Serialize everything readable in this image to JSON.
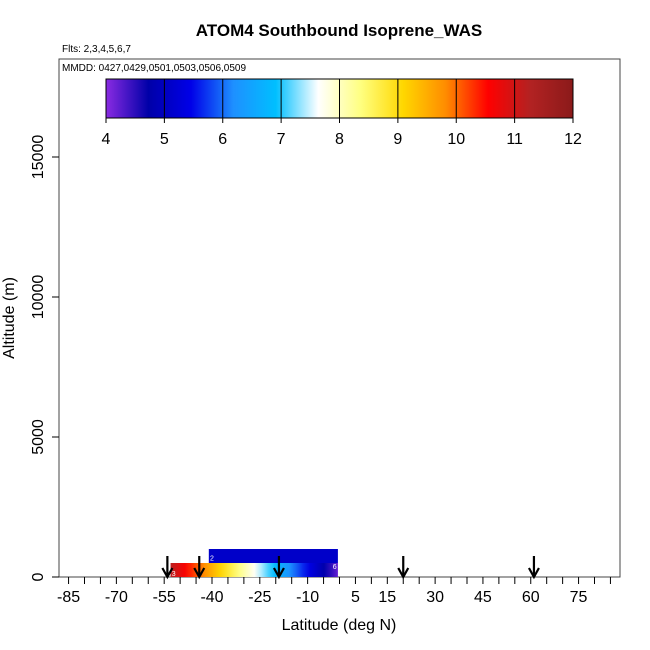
{
  "chart_data": {
    "type": "heatmap",
    "title": "ATOM4 Southbound Isoprene_WAS",
    "flights_note": "Flts: 2,3,4,5,6,7",
    "dates_note": "MMDD: 0427,0429,0501,0503,0506,0509",
    "xlabel": "Latitude (deg N)",
    "ylabel": "Altitude (m)",
    "xlim": [
      -88,
      88
    ],
    "ylim": [
      0,
      18500
    ],
    "x_ticks": [
      -85,
      -70,
      -55,
      -40,
      -25,
      -10,
      5,
      15,
      30,
      45,
      60,
      75
    ],
    "x_tick_labels": [
      "-85",
      "-70",
      "-55",
      "-40",
      "-25",
      "-10",
      "5",
      "15",
      "30",
      "45",
      "60",
      "75"
    ],
    "x_minor_ticks": [
      -80,
      -75,
      -65,
      -60,
      -50,
      -45,
      -35,
      -30,
      -20,
      -15,
      -5,
      0,
      10,
      20,
      25,
      35,
      40,
      50,
      55,
      65,
      70,
      80,
      85
    ],
    "y_ticks": [
      0,
      5000,
      10000,
      15000
    ],
    "y_tick_labels": [
      "0",
      "5000",
      "10000",
      "15000"
    ],
    "colorbar": {
      "min": 4,
      "max": 12,
      "ticks": [
        4,
        5,
        6,
        7,
        8,
        9,
        10,
        11,
        12
      ],
      "tick_labels": [
        "4",
        "5",
        "6",
        "7",
        "8",
        "9",
        "10",
        "11",
        "12"
      ],
      "stops": [
        "#8a2be2",
        "#0000a8",
        "#0000e8",
        "#1e90ff",
        "#00bfff",
        "#ffffff",
        "#ffff80",
        "#ffd700",
        "#ff8c00",
        "#ff0000",
        "#b22222",
        "#8b1a1a"
      ]
    },
    "gradient_bars": [
      {
        "name": "lower-bar",
        "lat_start": -53,
        "lat_end": -0.5,
        "alt_bottom": 0,
        "alt_top": 500,
        "value_start": 11.2,
        "value_end": 4.2
      },
      {
        "name": "upper-bar",
        "lat_start": -41,
        "lat_end": -0.5,
        "alt_bottom": 500,
        "alt_top": 1000,
        "value_start": 5.1,
        "value_end": 5.1
      }
    ],
    "bar_marks": [
      {
        "text": "3",
        "lat": -52,
        "alt": 150
      },
      {
        "text": "2",
        "lat": -40,
        "alt": 700
      },
      {
        "text": "6",
        "lat": -1.5,
        "alt": 400
      }
    ],
    "flight_arrows_lat": [
      -54,
      -44,
      -19,
      20,
      61
    ]
  }
}
